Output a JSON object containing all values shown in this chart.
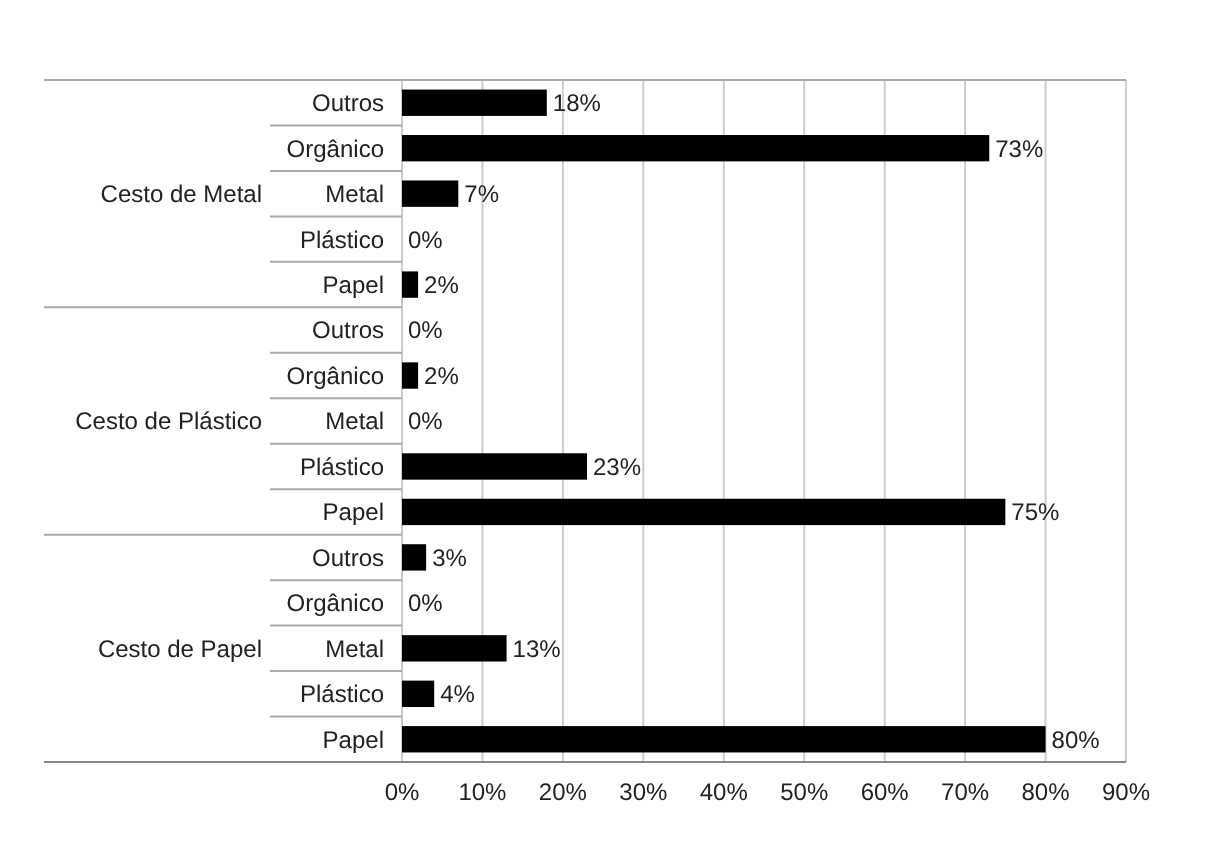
{
  "chart_data": {
    "type": "bar",
    "orientation": "horizontal",
    "categories": [
      "Outros",
      "Orgânico",
      "Metal",
      "Plástico",
      "Papel",
      "Outros",
      "Orgânico",
      "Metal",
      "Plástico",
      "Papel",
      "Outros",
      "Orgânico",
      "Metal",
      "Plástico",
      "Papel"
    ],
    "values": [
      18,
      73,
      7,
      0,
      2,
      0,
      2,
      0,
      23,
      75,
      3,
      0,
      13,
      4,
      80
    ],
    "value_labels": [
      "18%",
      "73%",
      "7%",
      "0%",
      "2%",
      "0%",
      "2%",
      "0%",
      "23%",
      "75%",
      "3%",
      "0%",
      "13%",
      "4%",
      "80%"
    ],
    "color": "#000000",
    "annotations": [
      "Cesto de Metal",
      "Cesto de Plástico",
      "Cesto de Papel"
    ],
    "xlim": [
      0,
      90
    ],
    "xticks": [
      {
        "value": 0,
        "label": "0%"
      },
      {
        "value": 10,
        "label": "10%"
      },
      {
        "value": 20,
        "label": "20%"
      },
      {
        "value": 30,
        "label": "30%"
      },
      {
        "value": 40,
        "label": "40%"
      },
      {
        "value": 50,
        "label": "50%"
      },
      {
        "value": 60,
        "label": "60%"
      },
      {
        "value": 70,
        "label": "70%"
      },
      {
        "value": 80,
        "label": "80%"
      },
      {
        "value": 90,
        "label": "90%"
      }
    ],
    "grid": "x"
  }
}
